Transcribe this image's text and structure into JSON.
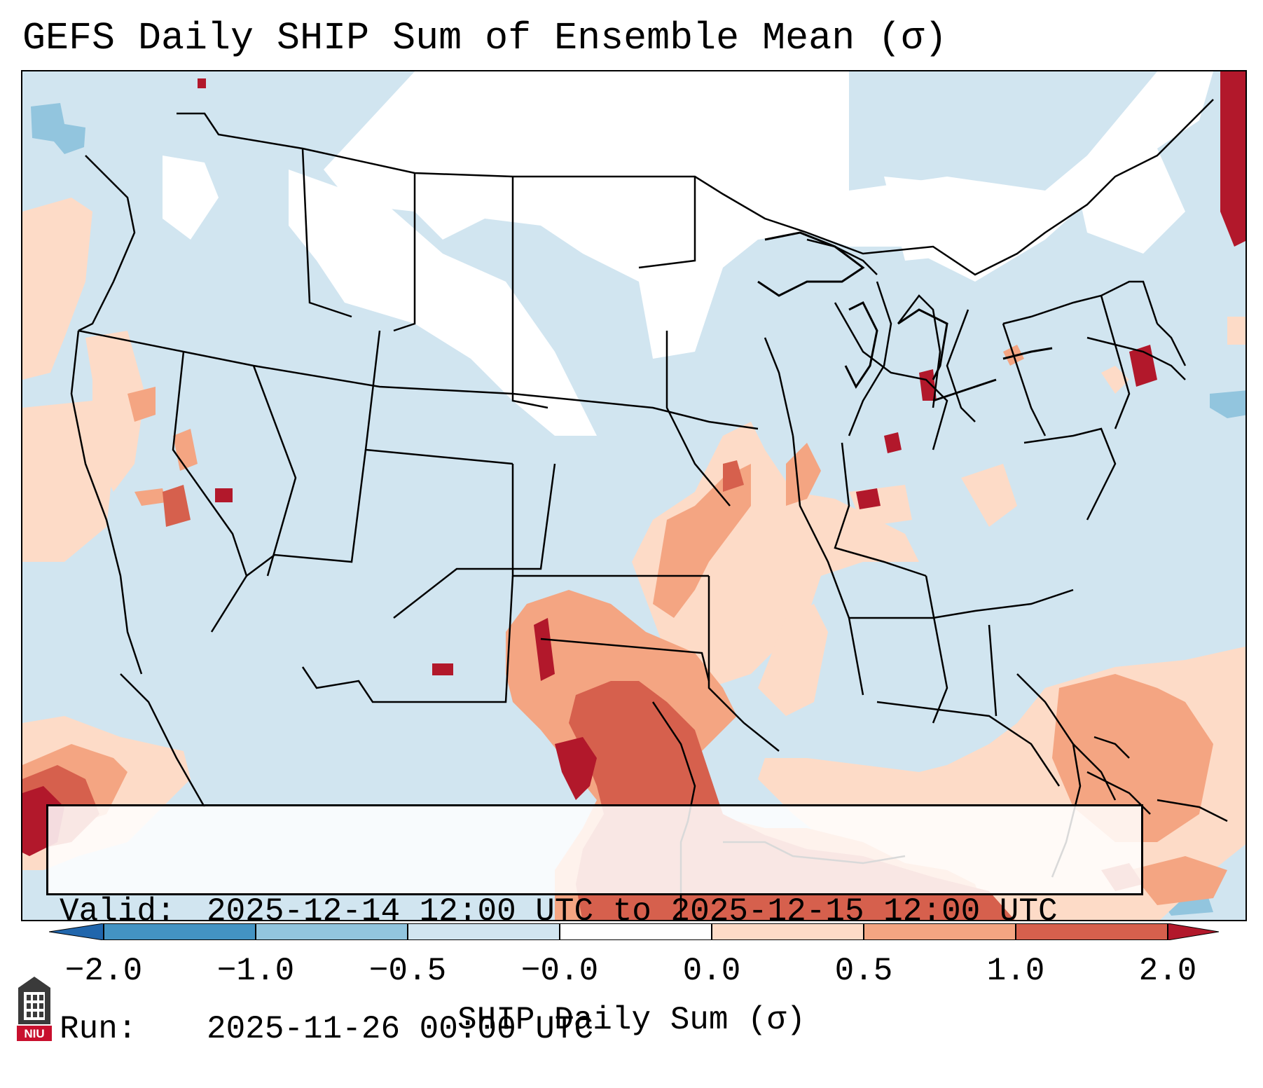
{
  "title": "GEFS Daily SHIP Sum of Ensemble Mean (σ)",
  "info": {
    "valid_label": "Valid:",
    "valid_value": "2025-12-14 12:00 UTC to 2025-12-15 12:00 UTC",
    "run_label": "Run:",
    "run_value": "2025-11-26 00:00 UTC"
  },
  "colorbar": {
    "label": "SHIP Daily Sum (σ)",
    "ticks": [
      "−2.0",
      "−1.0",
      "−0.5",
      "−0.0",
      "0.0",
      "0.5",
      "1.0",
      "2.0"
    ],
    "bins": [
      {
        "range": "< -2.0",
        "color": "#2166ac"
      },
      {
        "range": "-2.0 to -1.0",
        "color": "#4393c3"
      },
      {
        "range": "-1.0 to -0.5",
        "color": "#92c5de"
      },
      {
        "range": "-0.5 to -0.0",
        "color": "#d1e5f0"
      },
      {
        "range": "-0.0 to 0.0",
        "color": "#ffffff"
      },
      {
        "range": "0.0 to 0.5",
        "color": "#fddbc7"
      },
      {
        "range": "0.5 to 1.0",
        "color": "#f4a582"
      },
      {
        "range": "1.0 to 2.0",
        "color": "#d6604d"
      },
      {
        "range": "> 2.0",
        "color": "#b2182b"
      }
    ]
  },
  "logo": {
    "text": "NIU",
    "icon": "university-building-icon",
    "color": "#c8102e"
  }
}
